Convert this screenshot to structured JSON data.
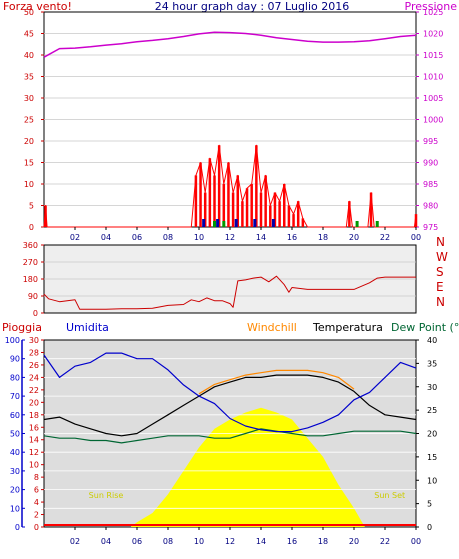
{
  "title": "24 hour graph day : 07 Luglio 2016",
  "colors": {
    "wind": "#ff0000",
    "pressure": "#cc00cc",
    "direction": "#cc0000",
    "rain": "#ff0000",
    "humidity": "#0000cc",
    "windchill": "#ff8800",
    "temperature": "#000000",
    "dewpoint": "#006633",
    "solar": "#ffff00",
    "gust": "#0000aa",
    "avgwind": "#009900"
  },
  "chart_data": [
    {
      "type": "line",
      "left_label": "Forza vento!",
      "right_label": "Pressione",
      "x_ticks": [
        "02",
        "04",
        "06",
        "08",
        "10",
        "12",
        "14",
        "16",
        "18",
        "20",
        "22",
        "00"
      ],
      "ylim_left": [
        0,
        50
      ],
      "yticks_left": [
        0,
        5,
        10,
        15,
        20,
        25,
        30,
        35,
        40,
        45,
        50
      ],
      "ylim_right": [
        975,
        1025
      ],
      "yticks_right": [
        975,
        980,
        985,
        990,
        995,
        1000,
        1005,
        1010,
        1015,
        1020,
        1025
      ],
      "series": [
        {
          "axis": "right",
          "x": [
            0,
            1,
            2,
            3,
            4,
            5,
            6,
            7,
            8,
            9,
            10,
            11,
            12,
            13,
            14,
            15,
            16,
            17,
            18,
            19,
            20,
            21,
            22,
            23,
            24
          ],
          "values": [
            1014.5,
            1016.5,
            1016.6,
            1016.9,
            1017.3,
            1017.6,
            1018.1,
            1018.4,
            1018.8,
            1019.3,
            1019.9,
            1020.3,
            1020.2,
            1020.0,
            1019.6,
            1019.0,
            1018.6,
            1018.2,
            1018.0,
            1018.0,
            1018.1,
            1018.3,
            1018.8,
            1019.3,
            1019.6
          ]
        },
        {
          "axis": "left",
          "x": [
            0,
            0.1,
            0.2,
            9.5,
            9.8,
            10.1,
            10.4,
            10.7,
            11.0,
            11.3,
            11.6,
            11.9,
            12.2,
            12.5,
            12.8,
            13.1,
            13.4,
            13.7,
            14.0,
            14.3,
            14.6,
            14.9,
            15.2,
            15.5,
            15.8,
            16.1,
            16.4,
            16.7,
            17.0,
            19.5,
            19.7,
            19.9,
            20.9,
            21.1,
            21.3,
            23.9,
            24
          ],
          "values": [
            0,
            5,
            0,
            0,
            12,
            15,
            8,
            16,
            12,
            19,
            10,
            15,
            8,
            12,
            6,
            9,
            10,
            19,
            8,
            12,
            5,
            8,
            6,
            10,
            5,
            3,
            6,
            2,
            0,
            0,
            6,
            0,
            0,
            8,
            0,
            0,
            3
          ]
        }
      ]
    },
    {
      "type": "line",
      "ylim": [
        0,
        360
      ],
      "yticks": [
        0,
        90,
        180,
        270,
        360
      ],
      "right_labels": [
        "N",
        "W",
        "S",
        "E",
        "N"
      ],
      "series": [
        {
          "x": [
            0,
            0.3,
            1.0,
            2.0,
            2.3,
            3.0,
            4.0,
            5.0,
            6.0,
            7.0,
            8.0,
            9.0,
            9.5,
            10.0,
            10.5,
            11.0,
            11.5,
            12.0,
            12.2,
            12.5,
            13.0,
            13.5,
            14.0,
            14.5,
            15.0,
            15.5,
            15.8,
            16.0,
            17.0,
            18.0,
            19.0,
            20.0,
            21.0,
            21.5,
            22.0,
            23.0,
            24.0
          ],
          "values": [
            100,
            75,
            60,
            70,
            20,
            20,
            20,
            22,
            22,
            25,
            40,
            45,
            70,
            60,
            80,
            65,
            65,
            50,
            30,
            170,
            175,
            185,
            190,
            165,
            195,
            150,
            110,
            135,
            125,
            125,
            125,
            125,
            160,
            185,
            190,
            190,
            190
          ]
        }
      ]
    },
    {
      "type": "line",
      "labels": {
        "rain": "Pioggia",
        "humidity": "Umidita",
        "windchill": "Windchill",
        "temperature": "Temperatura",
        "dewpoint": "Dew Point (°C"
      },
      "annotations": {
        "sunrise": "Sun Rise",
        "sunset": "Sun Set"
      },
      "sunrise_hour": 5.6,
      "sunset_hour": 20.7,
      "ylim_humidity": [
        0,
        100
      ],
      "yticks_humidity": [
        0,
        10,
        20,
        30,
        40,
        50,
        60,
        70,
        80,
        90,
        100
      ],
      "ylim_rain": [
        0,
        30
      ],
      "yticks_rain": [
        0,
        2,
        4,
        6,
        8,
        10,
        12,
        14,
        16,
        18,
        20,
        22,
        24,
        26,
        28,
        30
      ],
      "ylim_temp": [
        0,
        40
      ],
      "yticks_temp": [
        0,
        5,
        10,
        15,
        20,
        25,
        30,
        35,
        40
      ],
      "series": [
        {
          "name": "Umidita",
          "axis": "humidity",
          "x": [
            0,
            1,
            2,
            3,
            4,
            5,
            6,
            7,
            8,
            9,
            10,
            11,
            12,
            13,
            14,
            15,
            16,
            17,
            18,
            19,
            20,
            21,
            22,
            23,
            24
          ],
          "values": [
            92,
            80,
            86,
            88,
            93,
            93,
            90,
            90,
            84,
            76,
            70,
            66,
            58,
            54,
            52,
            51,
            51,
            53,
            56,
            60,
            68,
            72,
            80,
            88,
            85
          ]
        },
        {
          "name": "Temperatura",
          "axis": "temp",
          "x": [
            0,
            1,
            2,
            3,
            4,
            5,
            6,
            7,
            8,
            9,
            10,
            11,
            12,
            13,
            14,
            15,
            16,
            17,
            18,
            19,
            20,
            21,
            22,
            23,
            24
          ],
          "values": [
            23.0,
            23.5,
            22.0,
            21.0,
            20.0,
            19.5,
            20.0,
            22.0,
            24.0,
            26.0,
            28.0,
            30.0,
            31.0,
            32.0,
            32.0,
            32.5,
            32.5,
            32.5,
            32.0,
            31.0,
            29.0,
            26.0,
            24.0,
            23.5,
            23.0
          ]
        },
        {
          "name": "Windchill",
          "axis": "temp",
          "x": [
            10,
            11,
            12,
            13,
            14,
            15,
            16,
            17,
            18,
            19,
            20
          ],
          "values": [
            28.5,
            30.5,
            31.5,
            32.5,
            33.0,
            33.5,
            33.5,
            33.5,
            33.0,
            32.0,
            29.5
          ]
        },
        {
          "name": "Dew Point (°C",
          "axis": "temp",
          "x": [
            0,
            1,
            2,
            3,
            4,
            5,
            6,
            7,
            8,
            9,
            10,
            11,
            12,
            13,
            14,
            15,
            16,
            17,
            18,
            19,
            20,
            21,
            22,
            23,
            24
          ],
          "values": [
            19.5,
            19.0,
            19.0,
            18.5,
            18.5,
            18.0,
            18.5,
            19.0,
            19.5,
            19.5,
            19.5,
            19.0,
            19.0,
            20.0,
            21.0,
            20.5,
            20.0,
            19.5,
            19.5,
            20.0,
            20.5,
            20.5,
            20.5,
            20.5,
            20.0
          ]
        },
        {
          "name": "solar",
          "axis": "temp",
          "x": [
            5.6,
            6,
            7,
            8,
            9,
            10,
            11,
            12,
            13,
            14,
            15,
            16,
            17,
            18,
            19,
            20,
            20.7
          ],
          "values": [
            0,
            1,
            3,
            7,
            12,
            17,
            21,
            23,
            24.5,
            25.5,
            24.5,
            23,
            19,
            15,
            9,
            4,
            0
          ]
        }
      ]
    }
  ]
}
